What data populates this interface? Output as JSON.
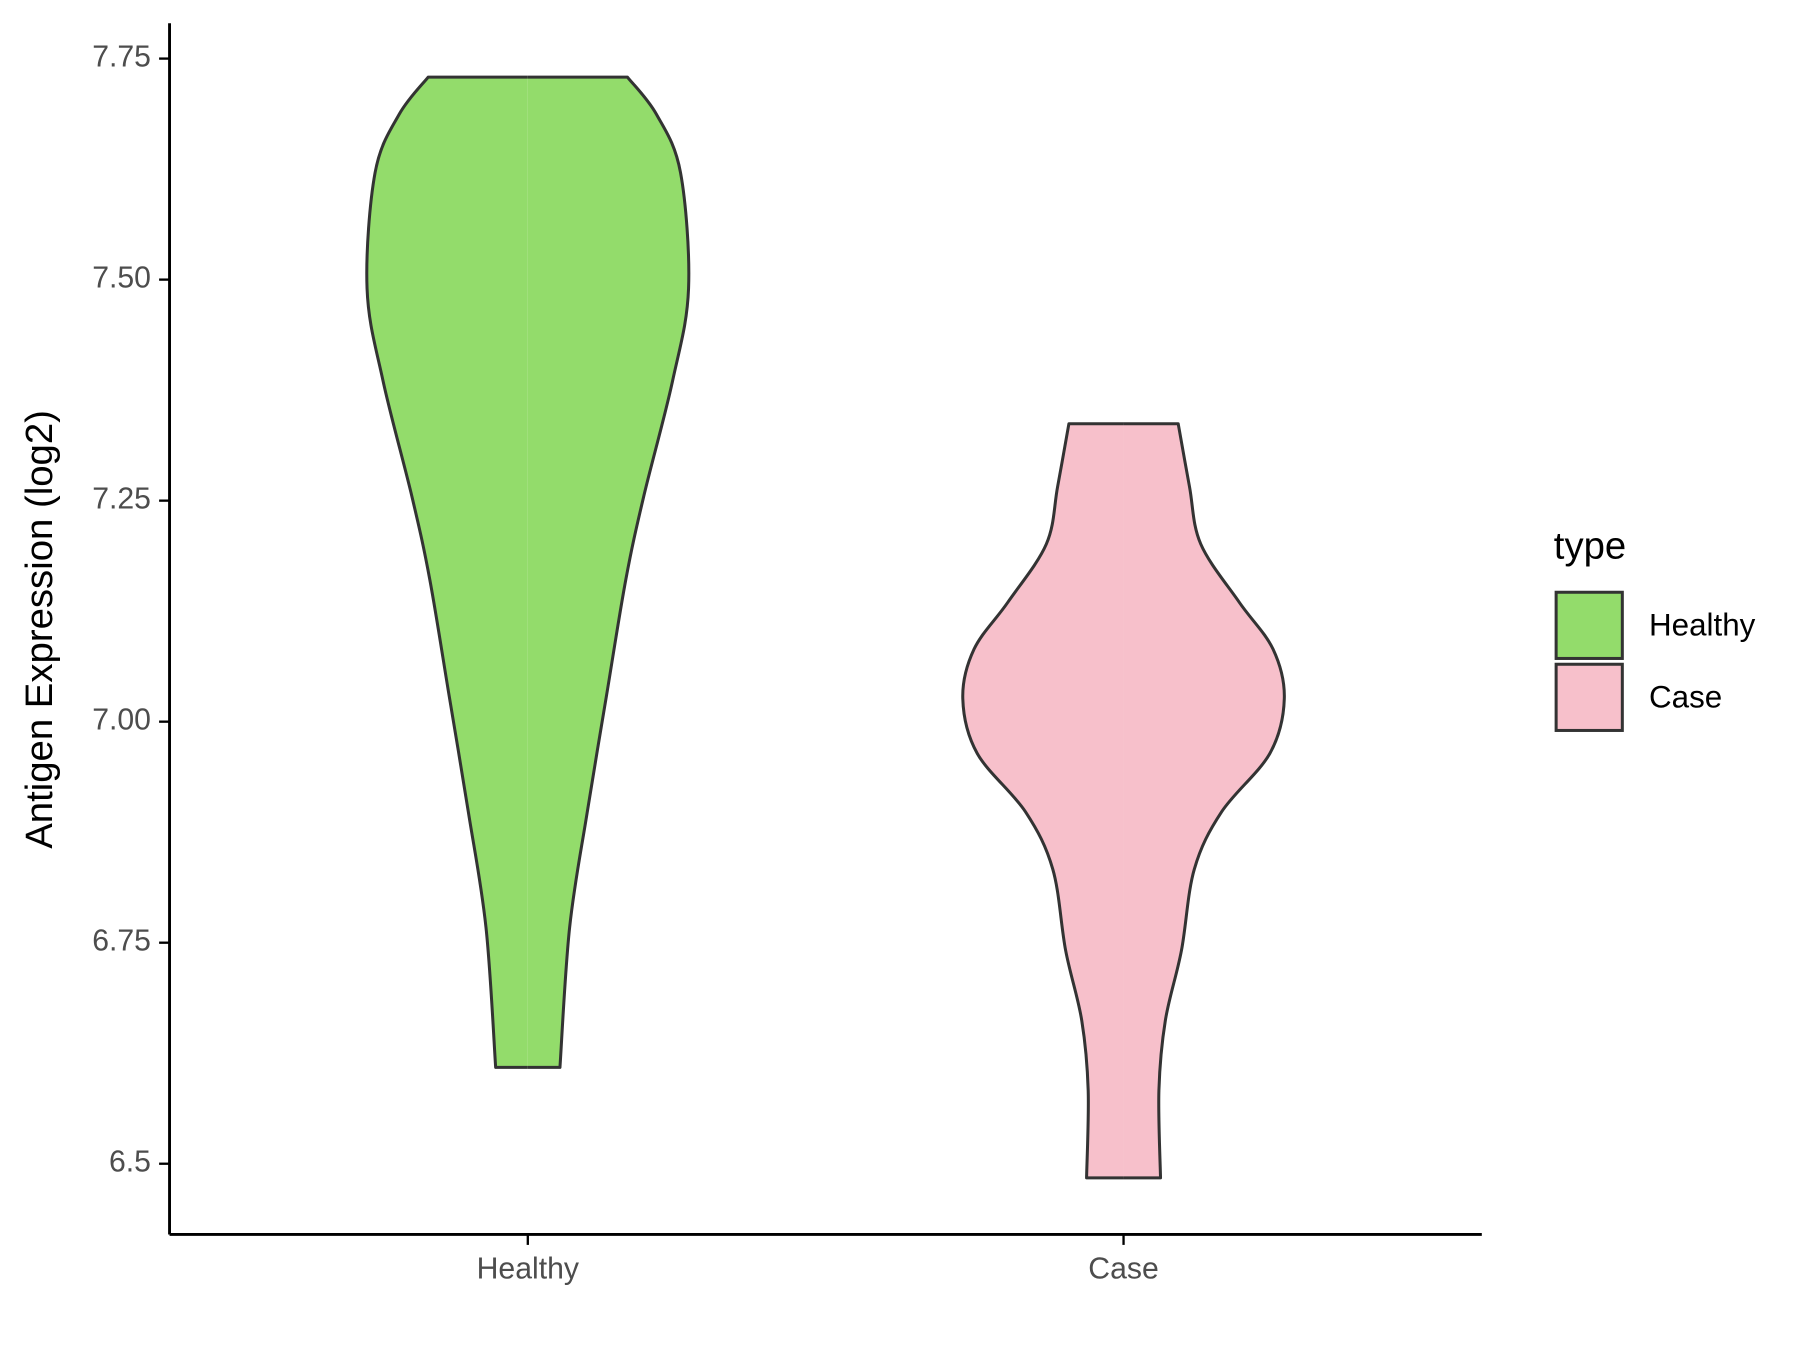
{
  "chart_data": {
    "type": "violin",
    "y_label": "Antigen Expression (log2)",
    "categories": [
      "Healthy",
      "Case"
    ],
    "ylim": [
      6.42,
      7.79
    ],
    "yticks": [
      6.5,
      6.75,
      {
        "value": 7,
        "label": "7.00"
      },
      7.25,
      {
        "value": 7.5,
        "label": "7.50"
      },
      7.75,
      {
        "value": 6.5,
        "label": "6.50"
      }
    ],
    "legend_title": "type",
    "legend_position": "right",
    "series": [
      {
        "name": "Healthy",
        "color": "#93dc6b",
        "y": [
          7.729,
          7.687,
          7.621,
          7.49,
          7.385,
          7.254,
          7.161,
          7.03,
          6.898,
          6.767,
          6.609
        ],
        "width": [
          0.62,
          0.8,
          0.95,
          1.0,
          0.9,
          0.72,
          0.61,
          0.49,
          0.37,
          0.26,
          0.2
        ]
      },
      {
        "name": "Case",
        "color": "#f7c0cb",
        "y": [
          7.337,
          7.266,
          7.201,
          7.135,
          7.082,
          7.026,
          6.964,
          6.898,
          6.833,
          6.741,
          6.662,
          6.583,
          6.484
        ],
        "width": [
          0.34,
          0.41,
          0.48,
          0.72,
          0.93,
          1.0,
          0.91,
          0.61,
          0.44,
          0.36,
          0.26,
          0.22,
          0.23
        ]
      }
    ]
  }
}
